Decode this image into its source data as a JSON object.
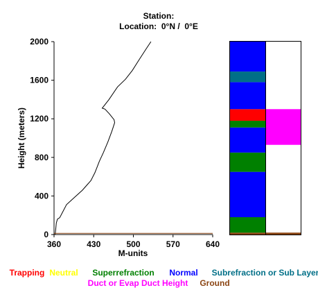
{
  "header": {
    "station_label": "Station:",
    "location_label": "Location:",
    "location_lat": "0°N",
    "location_sep": "/",
    "location_lon": "0°E"
  },
  "chart_data": {
    "type": "line",
    "xlabel": "M-units",
    "ylabel": "Height (meters)",
    "xlim": [
      360,
      640
    ],
    "ylim": [
      0,
      2000
    ],
    "x_ticks": [
      "360",
      "430",
      "500",
      "570",
      "640"
    ],
    "y_ticks": [
      "0",
      "400",
      "800",
      "1200",
      "1600",
      "2000"
    ],
    "series": [
      {
        "color": "#000000",
        "points": [
          [
            362,
            0
          ],
          [
            363,
            60
          ],
          [
            364,
            120
          ],
          [
            366,
            160
          ],
          [
            370,
            175
          ],
          [
            374,
            220
          ],
          [
            382,
            310
          ],
          [
            395,
            380
          ],
          [
            410,
            460
          ],
          [
            425,
            560
          ],
          [
            432,
            640
          ],
          [
            436,
            700
          ],
          [
            440,
            760
          ],
          [
            447,
            850
          ],
          [
            455,
            960
          ],
          [
            462,
            1070
          ],
          [
            467,
            1160
          ],
          [
            466,
            1190
          ],
          [
            458,
            1250
          ],
          [
            450,
            1300
          ],
          [
            445,
            1310
          ],
          [
            457,
            1400
          ],
          [
            472,
            1530
          ],
          [
            486,
            1610
          ],
          [
            498,
            1700
          ],
          [
            511,
            1820
          ],
          [
            522,
            1920
          ],
          [
            531,
            2000
          ]
        ]
      },
      {
        "color": "#8b4513",
        "points": [
          [
            360,
            12
          ],
          [
            640,
            12
          ]
        ]
      }
    ],
    "category_bar": {
      "ylim": [
        0,
        2000
      ],
      "left_column": [
        {
          "from": 0,
          "to": 20,
          "category": "ground"
        },
        {
          "from": 20,
          "to": 180,
          "category": "superrefraction"
        },
        {
          "from": 180,
          "to": 650,
          "category": "normal"
        },
        {
          "from": 650,
          "to": 850,
          "category": "superrefraction"
        },
        {
          "from": 850,
          "to": 1110,
          "category": "normal"
        },
        {
          "from": 1110,
          "to": 1180,
          "category": "superrefraction"
        },
        {
          "from": 1180,
          "to": 1300,
          "category": "trapping"
        },
        {
          "from": 1300,
          "to": 1580,
          "category": "normal"
        },
        {
          "from": 1580,
          "to": 1690,
          "category": "subrefraction"
        },
        {
          "from": 1690,
          "to": 2000,
          "category": "normal"
        }
      ],
      "right_column": [
        {
          "from": 0,
          "to": 20,
          "category": "ground"
        },
        {
          "from": 930,
          "to": 1300,
          "category": "duct"
        }
      ]
    }
  },
  "legend": {
    "items": [
      {
        "key": "trapping",
        "label": "Trapping",
        "color": "#ff0000"
      },
      {
        "key": "neutral",
        "label": "Neutral",
        "color": "#ffff00"
      },
      {
        "key": "superrefraction",
        "label": "Superrefraction",
        "color": "#008000"
      },
      {
        "key": "normal",
        "label": "Normal",
        "color": "#0000ff"
      },
      {
        "key": "subrefraction",
        "label": "Subrefraction or Sub Layer",
        "color": "#006f87"
      },
      {
        "key": "duct",
        "label": "Duct or Evap Duct Height",
        "color": "#ff00ff"
      },
      {
        "key": "ground",
        "label": "Ground",
        "color": "#8b4513"
      }
    ]
  }
}
